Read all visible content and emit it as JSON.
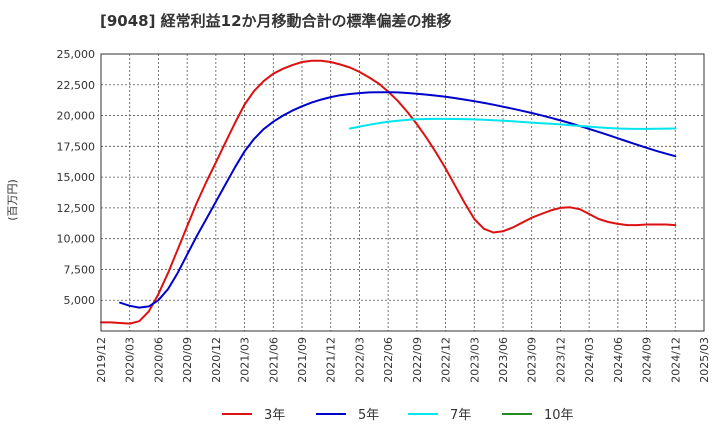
{
  "chart_data": {
    "type": "line",
    "title": "[9048]  経常利益12か月移動合計の標準偏差の推移",
    "ylabel": "(百万円)",
    "xlabel": "",
    "ylim": [
      2500,
      25000
    ],
    "yticks": [
      5000,
      7500,
      10000,
      12500,
      15000,
      17500,
      20000,
      22500,
      25000
    ],
    "ytick_labels": [
      "5,000",
      "7,500",
      "10,000",
      "12,500",
      "15,000",
      "17,500",
      "20,000",
      "22,500",
      "25,000"
    ],
    "xlim": [
      "2019-12",
      "2025-03"
    ],
    "xtick_labels": [
      "2019/12",
      "2020/03",
      "2020/06",
      "2020/09",
      "2020/12",
      "2021/03",
      "2021/06",
      "2021/09",
      "2021/12",
      "2022/03",
      "2022/06",
      "2022/09",
      "2022/12",
      "2023/03",
      "2023/06",
      "2023/09",
      "2023/12",
      "2024/03",
      "2024/06",
      "2024/09",
      "2024/12",
      "2025/03"
    ],
    "grid": true,
    "legend_position": "bottom",
    "series": [
      {
        "name": "3年",
        "color": "#dd1111",
        "points": [
          [
            "2019-12",
            3200
          ],
          [
            "2020-01",
            3200
          ],
          [
            "2020-02",
            3150
          ],
          [
            "2020-03",
            3100
          ],
          [
            "2020-04",
            3300
          ],
          [
            "2020-05",
            4100
          ],
          [
            "2020-06",
            5500
          ],
          [
            "2020-07",
            7200
          ],
          [
            "2020-08",
            9100
          ],
          [
            "2020-09",
            11000
          ],
          [
            "2020-10",
            12900
          ],
          [
            "2020-11",
            14600
          ],
          [
            "2020-12",
            16200
          ],
          [
            "2021-01",
            17800
          ],
          [
            "2021-02",
            19400
          ],
          [
            "2021-03",
            20900
          ],
          [
            "2021-04",
            22000
          ],
          [
            "2021-05",
            22800
          ],
          [
            "2021-06",
            23400
          ],
          [
            "2021-07",
            23800
          ],
          [
            "2021-08",
            24100
          ],
          [
            "2021-09",
            24350
          ],
          [
            "2021-10",
            24450
          ],
          [
            "2021-11",
            24450
          ],
          [
            "2021-12",
            24350
          ],
          [
            "2022-01",
            24150
          ],
          [
            "2022-02",
            23900
          ],
          [
            "2022-03",
            23550
          ],
          [
            "2022-04",
            23100
          ],
          [
            "2022-05",
            22600
          ],
          [
            "2022-06",
            21950
          ],
          [
            "2022-07",
            21200
          ],
          [
            "2022-08",
            20300
          ],
          [
            "2022-09",
            19300
          ],
          [
            "2022-10",
            18200
          ],
          [
            "2022-11",
            17000
          ],
          [
            "2022-12",
            15700
          ],
          [
            "2023-01",
            14300
          ],
          [
            "2023-02",
            12900
          ],
          [
            "2023-03",
            11600
          ],
          [
            "2023-04",
            10800
          ],
          [
            "2023-05",
            10500
          ],
          [
            "2023-06",
            10600
          ],
          [
            "2023-07",
            10900
          ],
          [
            "2023-08",
            11300
          ],
          [
            "2023-09",
            11700
          ],
          [
            "2023-10",
            12000
          ],
          [
            "2023-11",
            12300
          ],
          [
            "2023-12",
            12500
          ],
          [
            "2024-01",
            12550
          ],
          [
            "2024-02",
            12400
          ],
          [
            "2024-03",
            12000
          ],
          [
            "2024-04",
            11600
          ],
          [
            "2024-05",
            11350
          ],
          [
            "2024-06",
            11200
          ],
          [
            "2024-07",
            11100
          ],
          [
            "2024-08",
            11100
          ],
          [
            "2024-09",
            11150
          ],
          [
            "2024-10",
            11150
          ],
          [
            "2024-11",
            11150
          ],
          [
            "2024-12",
            11100
          ]
        ]
      },
      {
        "name": "5年",
        "color": "#0000cc",
        "points": [
          [
            "2020-02",
            4800
          ],
          [
            "2020-03",
            4550
          ],
          [
            "2020-04",
            4400
          ],
          [
            "2020-05",
            4500
          ],
          [
            "2020-06",
            5000
          ],
          [
            "2020-07",
            5900
          ],
          [
            "2020-08",
            7200
          ],
          [
            "2020-09",
            8700
          ],
          [
            "2020-10",
            10200
          ],
          [
            "2020-11",
            11600
          ],
          [
            "2020-12",
            13000
          ],
          [
            "2021-01",
            14400
          ],
          [
            "2021-02",
            15800
          ],
          [
            "2021-03",
            17100
          ],
          [
            "2021-04",
            18100
          ],
          [
            "2021-05",
            18900
          ],
          [
            "2021-06",
            19500
          ],
          [
            "2021-07",
            20000
          ],
          [
            "2021-08",
            20400
          ],
          [
            "2021-09",
            20750
          ],
          [
            "2021-10",
            21050
          ],
          [
            "2021-11",
            21300
          ],
          [
            "2021-12",
            21500
          ],
          [
            "2022-01",
            21650
          ],
          [
            "2022-02",
            21750
          ],
          [
            "2022-03",
            21820
          ],
          [
            "2022-04",
            21880
          ],
          [
            "2022-05",
            21900
          ],
          [
            "2022-06",
            21900
          ],
          [
            "2022-07",
            21880
          ],
          [
            "2022-08",
            21830
          ],
          [
            "2022-09",
            21770
          ],
          [
            "2022-10",
            21700
          ],
          [
            "2022-11",
            21620
          ],
          [
            "2022-12",
            21530
          ],
          [
            "2023-01",
            21420
          ],
          [
            "2023-02",
            21300
          ],
          [
            "2023-03",
            21170
          ],
          [
            "2023-04",
            21030
          ],
          [
            "2023-05",
            20880
          ],
          [
            "2023-06",
            20720
          ],
          [
            "2023-07",
            20560
          ],
          [
            "2023-08",
            20390
          ],
          [
            "2023-09",
            20210
          ],
          [
            "2023-10",
            20020
          ],
          [
            "2023-11",
            19820
          ],
          [
            "2023-12",
            19610
          ],
          [
            "2024-01",
            19390
          ],
          [
            "2024-02",
            19160
          ],
          [
            "2024-03",
            18920
          ],
          [
            "2024-04",
            18670
          ],
          [
            "2024-05",
            18410
          ],
          [
            "2024-06",
            18150
          ],
          [
            "2024-07",
            17890
          ],
          [
            "2024-08",
            17630
          ],
          [
            "2024-09",
            17380
          ],
          [
            "2024-10",
            17140
          ],
          [
            "2024-11",
            16910
          ],
          [
            "2024-12",
            16700
          ]
        ]
      },
      {
        "name": "7年",
        "color": "#00e5ee",
        "points": [
          [
            "2022-02",
            18950
          ],
          [
            "2022-03",
            19100
          ],
          [
            "2022-04",
            19250
          ],
          [
            "2022-05",
            19380
          ],
          [
            "2022-06",
            19500
          ],
          [
            "2022-07",
            19580
          ],
          [
            "2022-08",
            19650
          ],
          [
            "2022-09",
            19700
          ],
          [
            "2022-10",
            19720
          ],
          [
            "2022-11",
            19730
          ],
          [
            "2022-12",
            19730
          ],
          [
            "2023-01",
            19720
          ],
          [
            "2023-02",
            19710
          ],
          [
            "2023-03",
            19690
          ],
          [
            "2023-04",
            19660
          ],
          [
            "2023-05",
            19620
          ],
          [
            "2023-06",
            19580
          ],
          [
            "2023-07",
            19530
          ],
          [
            "2023-08",
            19480
          ],
          [
            "2023-09",
            19430
          ],
          [
            "2023-10",
            19380
          ],
          [
            "2023-11",
            19330
          ],
          [
            "2023-12",
            19280
          ],
          [
            "2024-01",
            19220
          ],
          [
            "2024-02",
            19160
          ],
          [
            "2024-03",
            19100
          ],
          [
            "2024-04",
            19040
          ],
          [
            "2024-05",
            18990
          ],
          [
            "2024-06",
            18950
          ],
          [
            "2024-07",
            18930
          ],
          [
            "2024-08",
            18920
          ],
          [
            "2024-09",
            18920
          ],
          [
            "2024-10",
            18930
          ],
          [
            "2024-11",
            18940
          ],
          [
            "2024-12",
            18950
          ]
        ]
      },
      {
        "name": "10年",
        "color": "#228b22",
        "points": []
      }
    ]
  }
}
